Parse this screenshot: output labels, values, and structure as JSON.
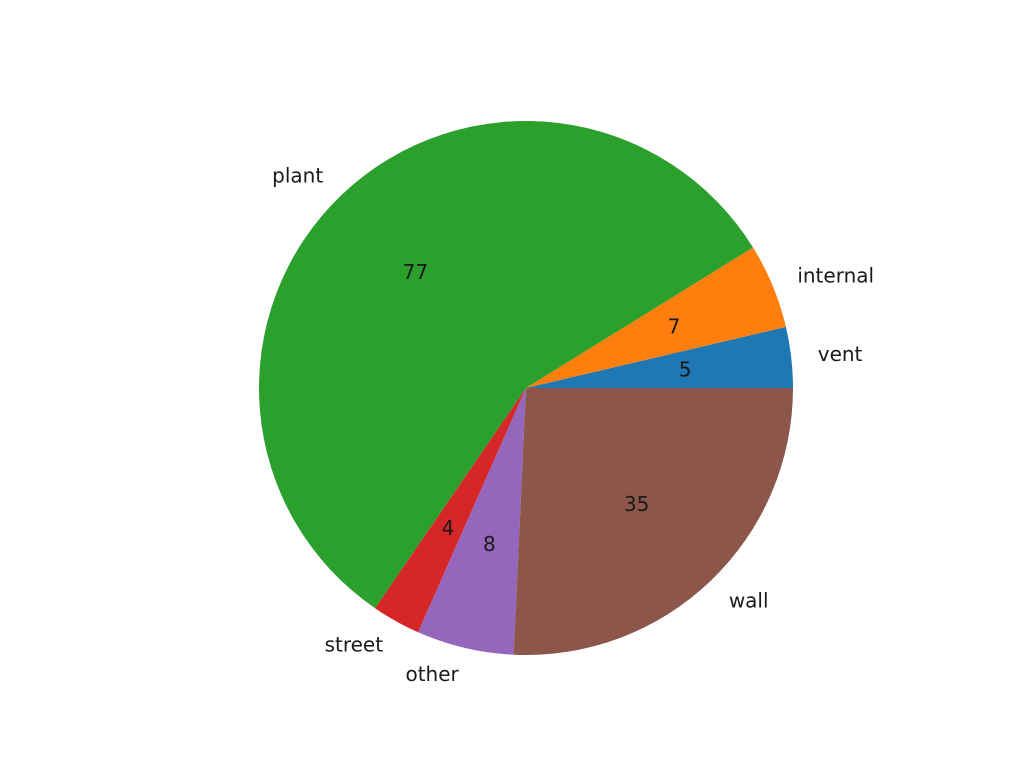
{
  "chart_data": {
    "type": "pie",
    "labels": [
      "vent",
      "internal",
      "plant",
      "street",
      "other",
      "wall"
    ],
    "values": [
      5,
      7,
      77,
      4,
      8,
      35
    ],
    "colors": [
      "#1f77b4",
      "#ff7f0e",
      "#2ca02c",
      "#d62728",
      "#9467bd",
      "#8c564b"
    ],
    "start_angle_deg": 0,
    "direction": "counterclockwise",
    "title": "",
    "legend": "none"
  }
}
